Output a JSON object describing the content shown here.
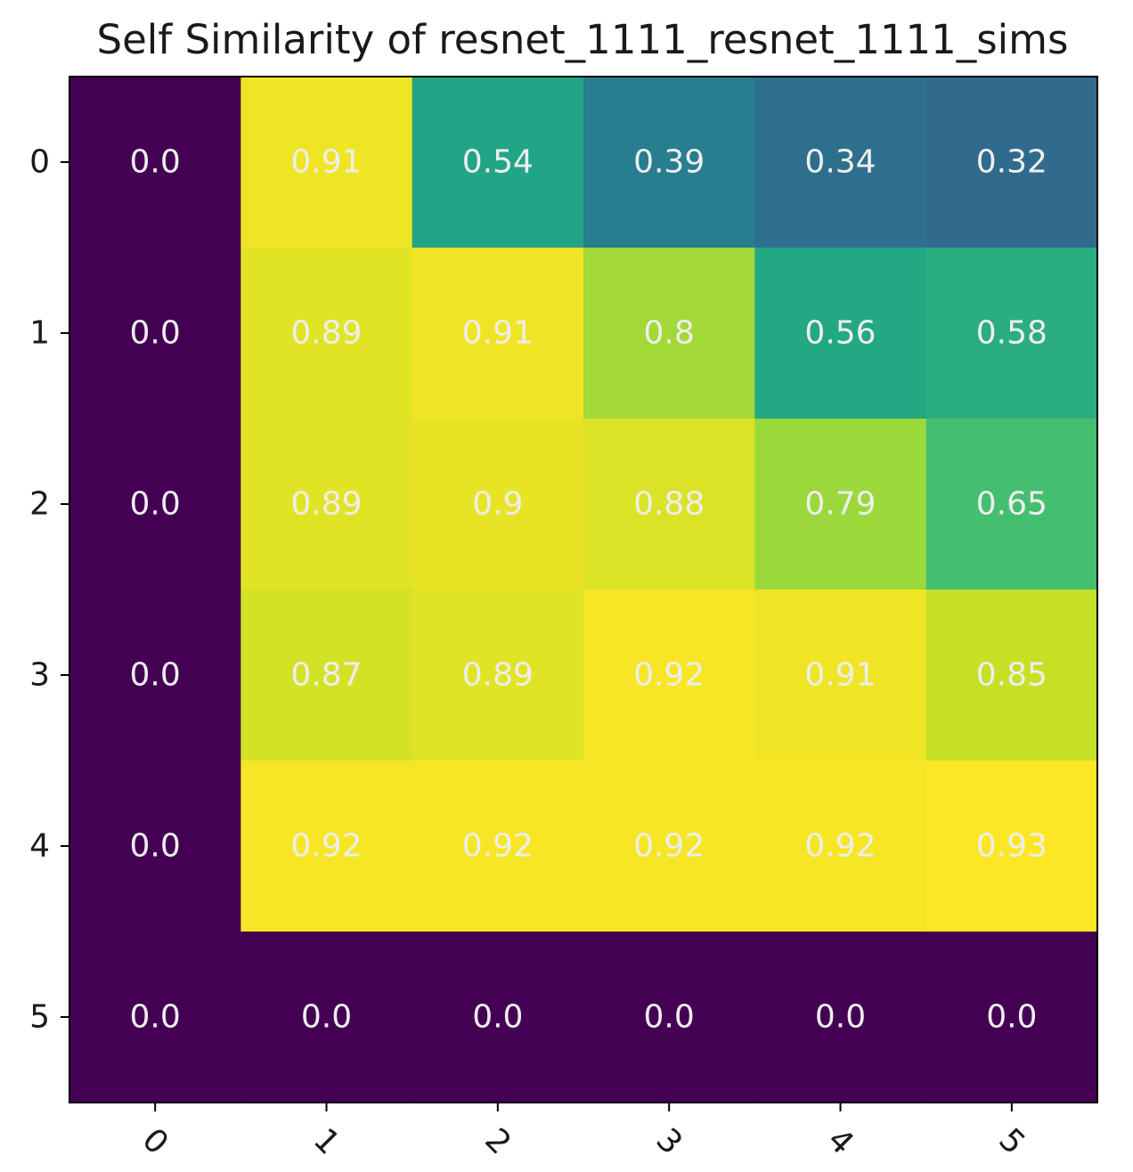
{
  "chart_data": {
    "type": "heatmap",
    "title": "Self Similarity of resnet_1111_resnet_1111_sims",
    "xlabel": "",
    "ylabel": "",
    "x_categories": [
      "0",
      "1",
      "2",
      "3",
      "4",
      "5"
    ],
    "y_categories": [
      "0",
      "1",
      "2",
      "3",
      "4",
      "5"
    ],
    "values": [
      [
        0.0,
        0.91,
        0.54,
        0.39,
        0.34,
        0.32
      ],
      [
        0.0,
        0.89,
        0.91,
        0.8,
        0.56,
        0.58
      ],
      [
        0.0,
        0.89,
        0.9,
        0.88,
        0.79,
        0.65
      ],
      [
        0.0,
        0.87,
        0.89,
        0.92,
        0.91,
        0.85
      ],
      [
        0.0,
        0.92,
        0.92,
        0.92,
        0.92,
        0.93
      ],
      [
        0.0,
        0.0,
        0.0,
        0.0,
        0.0,
        0.0
      ]
    ],
    "cell_labels": [
      [
        "0.0",
        "0.91",
        "0.54",
        "0.39",
        "0.34",
        "0.32"
      ],
      [
        "0.0",
        "0.89",
        "0.91",
        "0.8",
        "0.56",
        "0.58"
      ],
      [
        "0.0",
        "0.89",
        "0.9",
        "0.88",
        "0.79",
        "0.65"
      ],
      [
        "0.0",
        "0.87",
        "0.89",
        "0.92",
        "0.91",
        "0.85"
      ],
      [
        "0.0",
        "0.92",
        "0.92",
        "0.92",
        "0.92",
        "0.93"
      ],
      [
        "0.0",
        "0.0",
        "0.0",
        "0.0",
        "0.0",
        "0.0"
      ]
    ],
    "colormap": "viridis",
    "color_range": [
      0,
      0.93
    ],
    "x_tick_rotation_deg": 45,
    "grid": false,
    "legend": "none"
  }
}
